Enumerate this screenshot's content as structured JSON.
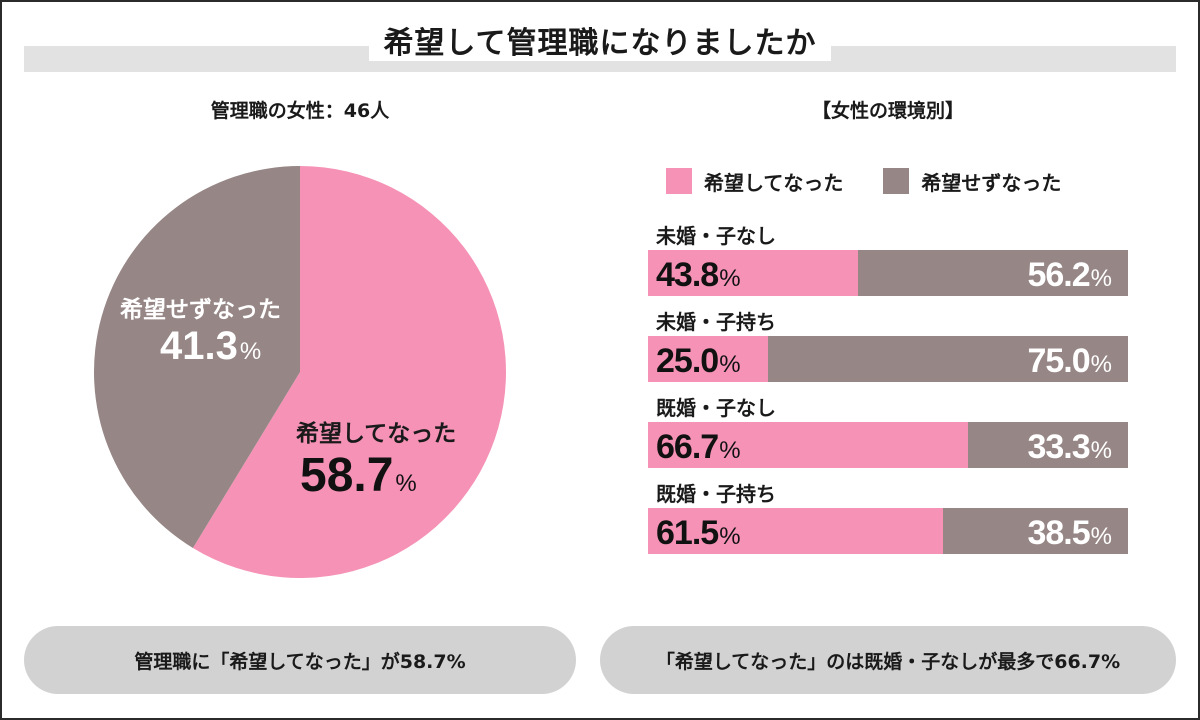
{
  "title": "希望して管理職になりましたか",
  "colors": {
    "pink": "#F592B6",
    "gray": "#968685"
  },
  "pie": {
    "subtitle": "管理職の女性：46人",
    "slices": [
      {
        "key": "hoped",
        "name": "希望してなった",
        "value": 58.7,
        "value_text": "58.7",
        "unit": "%",
        "color": "#F592B6"
      },
      {
        "key": "not",
        "name": "希望せずなった",
        "value": 41.3,
        "value_text": "41.3",
        "unit": "%",
        "color": "#968685"
      }
    ]
  },
  "chart_data": {
    "type": "bar",
    "title": "【女性の環境別】",
    "orientation": "horizontal-stacked-100",
    "categories": [
      "未婚・子なし",
      "未婚・子持ち",
      "既婚・子なし",
      "既婚・子持ち"
    ],
    "series": [
      {
        "name": "希望してなった",
        "color": "#F592B6",
        "values": [
          43.8,
          25.0,
          66.7,
          61.5
        ],
        "labels": [
          "43.8",
          "25.0",
          "66.7",
          "61.5"
        ]
      },
      {
        "name": "希望せずなった",
        "color": "#968685",
        "values": [
          56.2,
          75.0,
          33.3,
          38.5
        ],
        "labels": [
          "56.2",
          "75.0",
          "33.3",
          "38.5"
        ]
      }
    ],
    "unit": "%",
    "legend": "top"
  },
  "summaries": [
    "管理職に「希望してなった」が58.7%",
    "「希望してなった」のは既婚・子なしが最多で66.7%"
  ]
}
